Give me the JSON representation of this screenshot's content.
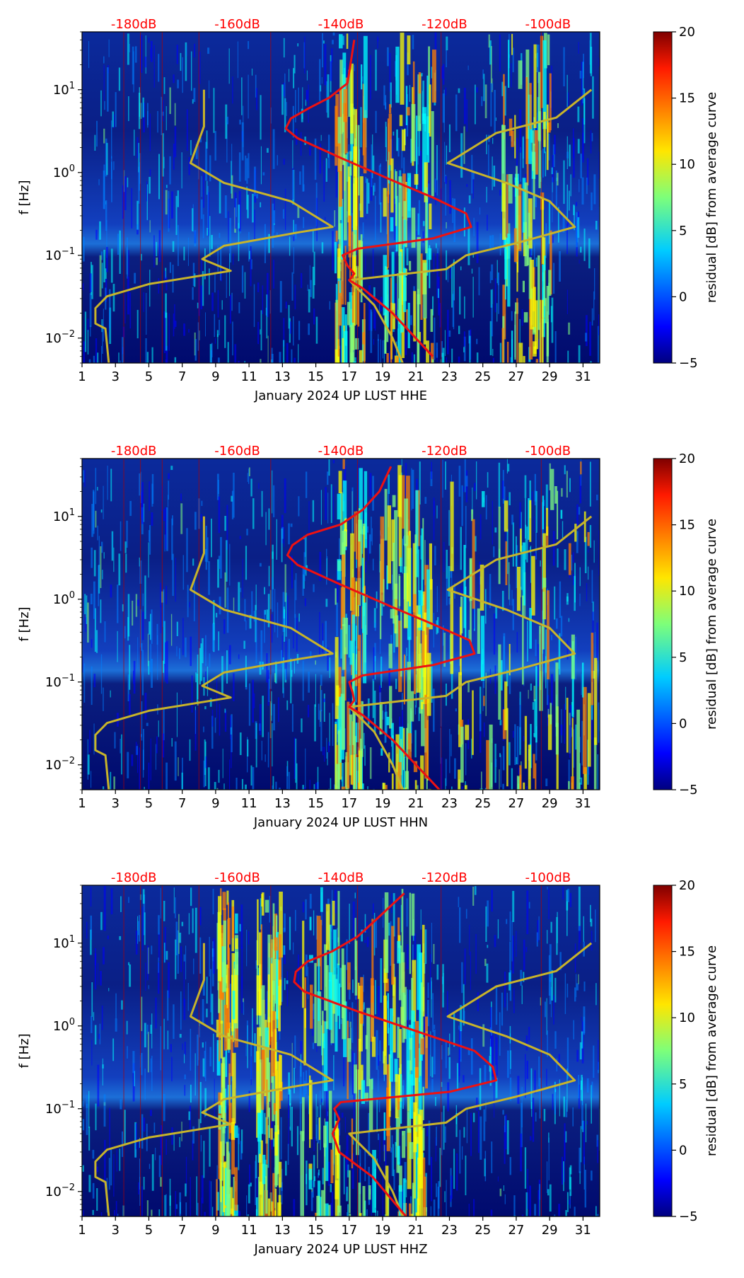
{
  "chart_data": [
    {
      "type": "heatmap",
      "xlabel": "January 2024 UP LUST  HHE",
      "ylabel": "f [Hz]",
      "xlim": [
        1,
        32
      ],
      "ylim_hz": [
        0.005,
        50
      ],
      "y_scale": "log",
      "x_ticks": [
        "1",
        "3",
        "5",
        "7",
        "9",
        "11",
        "13",
        "15",
        "17",
        "19",
        "21",
        "23",
        "25",
        "27",
        "29",
        "31"
      ],
      "y_ticks": [
        {
          "base": "10",
          "exp": "1"
        },
        {
          "base": "10",
          "exp": "0"
        },
        {
          "base": "10",
          "exp": "−1"
        },
        {
          "base": "10",
          "exp": "−2"
        }
      ],
      "top_db_labels": [
        "-180dB",
        "-160dB",
        "-140dB",
        "-120dB",
        "-100dB"
      ],
      "colorbar": {
        "label": "residual [dB] from average curve",
        "range": [
          -5,
          20
        ],
        "ticks": [
          "20",
          "15",
          "10",
          "5",
          "0",
          "−5"
        ],
        "colormap": "jet"
      },
      "red_curve": {
        "color": "#ee1111",
        "points": [
          [
            17.3,
            40
          ],
          [
            16.9,
            12
          ],
          [
            15.8,
            8
          ],
          [
            14.6,
            6
          ],
          [
            13.5,
            4.5
          ],
          [
            13.2,
            3.4
          ],
          [
            13.9,
            2.6
          ],
          [
            16.5,
            1.5
          ],
          [
            19.6,
            0.8
          ],
          [
            22.0,
            0.5
          ],
          [
            24.0,
            0.32
          ],
          [
            24.3,
            0.22
          ],
          [
            22.0,
            0.16
          ],
          [
            17.5,
            0.12
          ],
          [
            16.6,
            0.1
          ],
          [
            16.9,
            0.075
          ],
          [
            17.3,
            0.06
          ],
          [
            17.0,
            0.05
          ],
          [
            17.8,
            0.04
          ],
          [
            19.6,
            0.02
          ],
          [
            22.0,
            0.006
          ]
        ]
      },
      "yellow_curve_low": {
        "color": "#c8b42a",
        "points": [
          [
            8.3,
            10
          ],
          [
            8.3,
            3.6
          ],
          [
            7.5,
            1.3
          ],
          [
            9.5,
            0.75
          ],
          [
            13.5,
            0.45
          ],
          [
            16.0,
            0.22
          ],
          [
            14.0,
            0.19
          ],
          [
            9.5,
            0.13
          ],
          [
            8.2,
            0.09
          ],
          [
            9.9,
            0.065
          ],
          [
            5.0,
            0.045
          ],
          [
            2.5,
            0.032
          ],
          [
            1.8,
            0.023
          ],
          [
            1.8,
            0.015
          ],
          [
            2.4,
            0.013
          ],
          [
            2.6,
            0.005
          ]
        ]
      },
      "yellow_curve_high": {
        "color": "#c8b42a",
        "points": [
          [
            31.5,
            10
          ],
          [
            29.4,
            4.6
          ],
          [
            25.8,
            3.0
          ],
          [
            22.9,
            1.3
          ],
          [
            26.4,
            0.75
          ],
          [
            29.0,
            0.45
          ],
          [
            30.5,
            0.22
          ],
          [
            27.0,
            0.14
          ],
          [
            24.0,
            0.1
          ],
          [
            22.8,
            0.068
          ],
          [
            17.0,
            0.05
          ],
          [
            18.5,
            0.025
          ],
          [
            19.6,
            0.01
          ],
          [
            20.2,
            0.005
          ]
        ]
      },
      "disturbances": [
        [
          16.1,
          17.9
        ],
        [
          19.0,
          22.0
        ],
        [
          26.0,
          29.0
        ]
      ]
    },
    {
      "type": "heatmap",
      "xlabel": "January 2024 UP LUST  HHN",
      "ylabel": "f [Hz]",
      "xlim": [
        1,
        32
      ],
      "ylim_hz": [
        0.005,
        50
      ],
      "y_scale": "log",
      "x_ticks": [
        "1",
        "3",
        "5",
        "7",
        "9",
        "11",
        "13",
        "15",
        "17",
        "19",
        "21",
        "23",
        "25",
        "27",
        "29",
        "31"
      ],
      "y_ticks": [
        {
          "base": "10",
          "exp": "1"
        },
        {
          "base": "10",
          "exp": "0"
        },
        {
          "base": "10",
          "exp": "−1"
        },
        {
          "base": "10",
          "exp": "−2"
        }
      ],
      "top_db_labels": [
        "-180dB",
        "-160dB",
        "-140dB",
        "-120dB",
        "-100dB"
      ],
      "colorbar": {
        "label": "residual [dB] from average curve",
        "range": [
          -5,
          20
        ],
        "ticks": [
          "20",
          "15",
          "10",
          "5",
          "0",
          "−5"
        ],
        "colormap": "jet"
      },
      "red_curve": {
        "color": "#ee1111",
        "points": [
          [
            19.5,
            40
          ],
          [
            18.8,
            20
          ],
          [
            17.8,
            12
          ],
          [
            16.5,
            8
          ],
          [
            14.5,
            6
          ],
          [
            13.6,
            4.5
          ],
          [
            13.3,
            3.4
          ],
          [
            13.9,
            2.6
          ],
          [
            16.5,
            1.5
          ],
          [
            19.6,
            0.8
          ],
          [
            22.0,
            0.5
          ],
          [
            24.2,
            0.32
          ],
          [
            24.5,
            0.22
          ],
          [
            22.0,
            0.16
          ],
          [
            17.8,
            0.12
          ],
          [
            17.0,
            0.1
          ],
          [
            17.2,
            0.075
          ],
          [
            17.3,
            0.06
          ],
          [
            17.0,
            0.05
          ],
          [
            17.8,
            0.04
          ],
          [
            19.6,
            0.02
          ],
          [
            22.4,
            0.005
          ]
        ]
      },
      "yellow_curve_low": {
        "color": "#c8b42a",
        "points": [
          [
            8.3,
            10
          ],
          [
            8.3,
            3.6
          ],
          [
            7.5,
            1.3
          ],
          [
            9.5,
            0.75
          ],
          [
            13.5,
            0.45
          ],
          [
            16.0,
            0.22
          ],
          [
            14.0,
            0.19
          ],
          [
            9.5,
            0.13
          ],
          [
            8.2,
            0.09
          ],
          [
            9.9,
            0.065
          ],
          [
            5.0,
            0.045
          ],
          [
            2.5,
            0.032
          ],
          [
            1.8,
            0.023
          ],
          [
            1.8,
            0.015
          ],
          [
            2.4,
            0.013
          ],
          [
            2.6,
            0.005
          ]
        ]
      },
      "yellow_curve_high": {
        "color": "#c8b42a",
        "points": [
          [
            31.5,
            10
          ],
          [
            29.4,
            4.6
          ],
          [
            25.8,
            3.0
          ],
          [
            22.9,
            1.3
          ],
          [
            26.4,
            0.75
          ],
          [
            29.0,
            0.45
          ],
          [
            30.5,
            0.22
          ],
          [
            27.0,
            0.14
          ],
          [
            24.0,
            0.1
          ],
          [
            22.8,
            0.068
          ],
          [
            17.0,
            0.05
          ],
          [
            18.5,
            0.025
          ],
          [
            19.6,
            0.01
          ],
          [
            20.2,
            0.005
          ]
        ]
      },
      "disturbances": [
        [
          16.1,
          17.9
        ],
        [
          18.8,
          21.8
        ],
        [
          23.0,
          31.8
        ]
      ]
    },
    {
      "type": "heatmap",
      "xlabel": "January 2024 UP LUST  HHZ",
      "ylabel": "f [Hz]",
      "xlim": [
        1,
        32
      ],
      "ylim_hz": [
        0.005,
        50
      ],
      "y_scale": "log",
      "x_ticks": [
        "1",
        "3",
        "5",
        "7",
        "9",
        "11",
        "13",
        "15",
        "17",
        "19",
        "21",
        "23",
        "25",
        "27",
        "29",
        "31"
      ],
      "y_ticks": [
        {
          "base": "10",
          "exp": "1"
        },
        {
          "base": "10",
          "exp": "0"
        },
        {
          "base": "10",
          "exp": "−1"
        },
        {
          "base": "10",
          "exp": "−2"
        }
      ],
      "top_db_labels": [
        "-180dB",
        "-160dB",
        "-140dB",
        "-120dB",
        "-100dB"
      ],
      "colorbar": {
        "label": "residual [dB] from average curve",
        "range": [
          -5,
          20
        ],
        "ticks": [
          "20",
          "15",
          "10",
          "5",
          "0",
          "−5"
        ],
        "colormap": "jet"
      },
      "red_curve": {
        "color": "#ee1111",
        "points": [
          [
            20.3,
            40
          ],
          [
            18.7,
            20
          ],
          [
            17.5,
            12
          ],
          [
            16.0,
            8
          ],
          [
            14.5,
            6
          ],
          [
            13.8,
            4.5
          ],
          [
            13.7,
            3.4
          ],
          [
            14.3,
            2.6
          ],
          [
            17.5,
            1.5
          ],
          [
            21.5,
            0.8
          ],
          [
            24.5,
            0.5
          ],
          [
            25.6,
            0.32
          ],
          [
            25.8,
            0.22
          ],
          [
            23.0,
            0.16
          ],
          [
            16.5,
            0.12
          ],
          [
            16.1,
            0.1
          ],
          [
            16.4,
            0.075
          ],
          [
            16.0,
            0.05
          ],
          [
            16.4,
            0.03
          ],
          [
            18.4,
            0.015
          ],
          [
            20.4,
            0.005
          ]
        ]
      },
      "yellow_curve_low": {
        "color": "#c8b42a",
        "points": [
          [
            8.3,
            10
          ],
          [
            8.3,
            3.6
          ],
          [
            7.5,
            1.3
          ],
          [
            9.5,
            0.75
          ],
          [
            13.5,
            0.45
          ],
          [
            16.0,
            0.22
          ],
          [
            14.0,
            0.19
          ],
          [
            9.5,
            0.13
          ],
          [
            8.2,
            0.09
          ],
          [
            9.9,
            0.065
          ],
          [
            5.0,
            0.045
          ],
          [
            2.5,
            0.032
          ],
          [
            1.8,
            0.023
          ],
          [
            1.8,
            0.015
          ],
          [
            2.4,
            0.013
          ],
          [
            2.6,
            0.005
          ]
        ]
      },
      "yellow_curve_high": {
        "color": "#c8b42a",
        "points": [
          [
            31.5,
            10
          ],
          [
            29.4,
            4.6
          ],
          [
            25.8,
            3.0
          ],
          [
            22.9,
            1.3
          ],
          [
            26.4,
            0.75
          ],
          [
            29.0,
            0.45
          ],
          [
            30.5,
            0.22
          ],
          [
            27.0,
            0.14
          ],
          [
            24.0,
            0.1
          ],
          [
            22.8,
            0.068
          ],
          [
            17.0,
            0.05
          ],
          [
            18.5,
            0.025
          ],
          [
            19.6,
            0.01
          ],
          [
            20.2,
            0.005
          ]
        ]
      },
      "disturbances": [
        [
          9.0,
          10.2
        ],
        [
          11.4,
          12.8
        ],
        [
          14.0,
          18.5
        ],
        [
          19.0,
          21.6
        ]
      ]
    }
  ]
}
